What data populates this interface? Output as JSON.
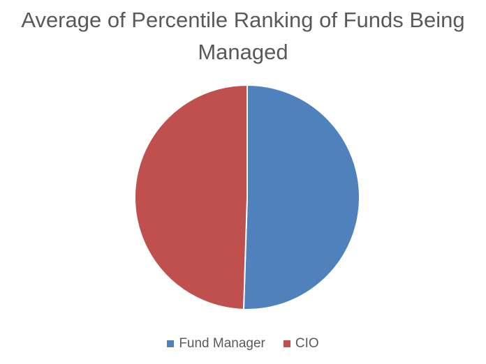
{
  "chart_data": {
    "type": "pie",
    "title": "Average of Percentile Ranking of Funds Being Managed",
    "series": [
      {
        "name": "Fund Manager",
        "value": 50.5,
        "color": "#4F81BD"
      },
      {
        "name": "CIO",
        "value": 49.5,
        "color": "#C0504D"
      }
    ],
    "start_angle_deg": 0,
    "direction": "clockwise",
    "legend_position": "bottom"
  }
}
